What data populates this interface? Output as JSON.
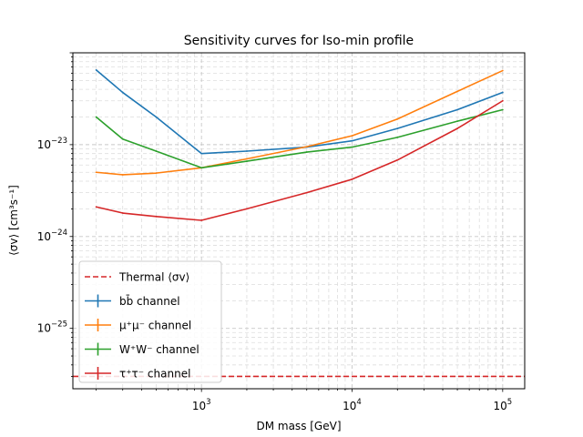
{
  "chart_data": {
    "type": "line",
    "title": "Sensitivity curves for Iso-min profile",
    "xlabel": "DM mass [GeV]",
    "ylabel": "⟨σv⟩ [cm³s⁻¹]",
    "xscale": "log",
    "yscale": "log",
    "xlim": [
      140,
      140000
    ],
    "ylim": [
      2.2e-26,
      1e-22
    ],
    "grid": "major and minor, dashed, light gray",
    "legend_position": "lower-left",
    "x_ticks": [
      {
        "value": 1000,
        "base": "10",
        "exp": "3"
      },
      {
        "value": 10000,
        "base": "10",
        "exp": "4"
      },
      {
        "value": 100000,
        "base": "10",
        "exp": "5"
      }
    ],
    "y_ticks": [
      {
        "value": 1e-25,
        "base": "10",
        "exp": "−25"
      },
      {
        "value": 1e-24,
        "base": "10",
        "exp": "−24"
      },
      {
        "value": 1e-23,
        "base": "10",
        "exp": "−23"
      }
    ],
    "reference_line": {
      "name": "Thermal ⟨σv⟩",
      "value": 3e-26,
      "color": "#d62728",
      "style": "dashed"
    },
    "series": [
      {
        "name": "bb̄ channel",
        "color": "#1f77b4",
        "x": [
          200,
          300,
          500,
          1000,
          2000,
          5000,
          10000,
          20000,
          50000,
          100000
        ],
        "y": [
          6.5e-23,
          3.7e-23,
          2e-23,
          8e-24,
          8.5e-24,
          9.4e-24,
          1.1e-23,
          1.5e-23,
          2.4e-23,
          3.7e-23
        ]
      },
      {
        "name": "μ⁺μ⁻ channel",
        "color": "#ff7f0e",
        "x": [
          200,
          300,
          500,
          1000,
          2000,
          5000,
          10000,
          20000,
          50000,
          100000
        ],
        "y": [
          5e-24,
          4.7e-24,
          4.9e-24,
          5.6e-24,
          7e-24,
          9.5e-24,
          1.25e-23,
          1.9e-23,
          3.8e-23,
          6.4e-23
        ]
      },
      {
        "name": "W⁺W⁻ channel",
        "color": "#2ca02c",
        "x": [
          200,
          300,
          500,
          1000,
          2000,
          5000,
          10000,
          20000,
          50000,
          100000
        ],
        "y": [
          2e-23,
          1.15e-23,
          8.5e-24,
          5.6e-24,
          6.6e-24,
          8.3e-24,
          9.4e-24,
          1.2e-23,
          1.8e-23,
          2.4e-23
        ]
      },
      {
        "name": "τ⁺τ⁻ channel",
        "color": "#d62728",
        "x": [
          200,
          300,
          500,
          1000,
          2000,
          5000,
          10000,
          20000,
          50000,
          100000
        ],
        "y": [
          2.1e-24,
          1.8e-24,
          1.65e-24,
          1.5e-24,
          2e-24,
          3e-24,
          4.2e-24,
          6.8e-24,
          1.5e-23,
          3e-23
        ]
      }
    ]
  }
}
